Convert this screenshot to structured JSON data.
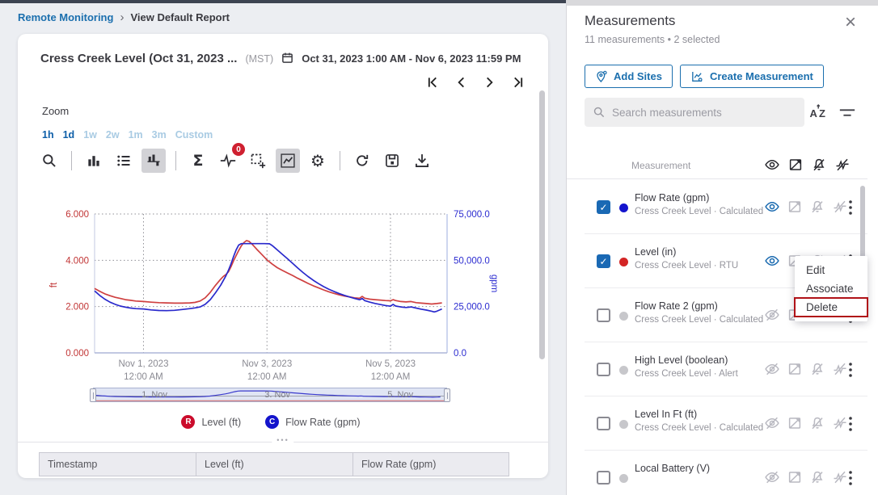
{
  "breadcrumb": {
    "root": "Remote Monitoring",
    "separator": "›",
    "current": "View Default Report"
  },
  "report": {
    "title": "Cress Creek Level (Oct 31, 2023 ...",
    "timezone": "(MST)",
    "date_range": "Oct 31, 2023 1:00 AM - Nov 6, 2023 11:59 PM",
    "zoom_label": "Zoom",
    "zoom_presets": [
      {
        "label": "1h",
        "active": true
      },
      {
        "label": "1d",
        "active": true
      },
      {
        "label": "1w",
        "active": false
      },
      {
        "label": "2w",
        "active": false
      },
      {
        "label": "1m",
        "active": false
      },
      {
        "label": "3m",
        "active": false
      },
      {
        "label": "Custom",
        "active": false
      }
    ],
    "toolbar": {
      "badge_count": "0",
      "sigma_glyph": "Σ",
      "gear_glyph": "⚙"
    }
  },
  "chart_data": {
    "type": "line",
    "title": "",
    "x_axis": {
      "unit": "hours since Oct 31, 2023 12:00 AM",
      "range": [
        5,
        142
      ],
      "ticks": [
        {
          "x": 24,
          "label_line1": "Nov 1, 2023",
          "label_line2": "12:00 AM"
        },
        {
          "x": 72,
          "label_line1": "Nov 3, 2023",
          "label_line2": "12:00 AM"
        },
        {
          "x": 120,
          "label_line1": "Nov 5, 2023",
          "label_line2": "12:00 AM"
        }
      ]
    },
    "y_left": {
      "label": "ft",
      "range": [
        0,
        6
      ],
      "tick_values": [
        0,
        2,
        4,
        6
      ],
      "tick_labels": [
        "0.000",
        "2.000",
        "4.000",
        "6.000"
      ],
      "color": "#c13535"
    },
    "y_right": {
      "label": "gpm",
      "range": [
        0,
        75000
      ],
      "tick_values": [
        0,
        25000,
        50000,
        75000
      ],
      "tick_labels": [
        "0.0",
        "25,000.0",
        "50,000.0",
        "75,000.0"
      ],
      "color": "#2b2bd0"
    },
    "grid": "dotted",
    "legend_position": "bottom",
    "series": [
      {
        "name": "Level (ft)",
        "axis": "left",
        "color": "#cf4040",
        "points": [
          [
            5,
            2.78
          ],
          [
            7,
            2.66
          ],
          [
            9,
            2.55
          ],
          [
            11,
            2.47
          ],
          [
            13,
            2.4
          ],
          [
            15,
            2.35
          ],
          [
            17,
            2.3
          ],
          [
            19,
            2.27
          ],
          [
            21,
            2.24
          ],
          [
            24,
            2.22
          ],
          [
            27,
            2.19
          ],
          [
            30,
            2.17
          ],
          [
            33,
            2.16
          ],
          [
            36,
            2.15
          ],
          [
            39,
            2.15
          ],
          [
            42,
            2.16
          ],
          [
            44,
            2.18
          ],
          [
            46,
            2.24
          ],
          [
            48,
            2.38
          ],
          [
            50,
            2.62
          ],
          [
            52,
            2.92
          ],
          [
            54,
            3.18
          ],
          [
            55,
            3.3
          ],
          [
            56,
            3.38
          ],
          [
            57,
            3.5
          ],
          [
            58,
            3.72
          ],
          [
            59,
            3.98
          ],
          [
            60,
            4.2
          ],
          [
            61,
            4.42
          ],
          [
            62,
            4.62
          ],
          [
            63,
            4.76
          ],
          [
            64,
            4.85
          ],
          [
            65,
            4.82
          ],
          [
            66,
            4.72
          ],
          [
            67,
            4.6
          ],
          [
            68,
            4.48
          ],
          [
            70,
            4.25
          ],
          [
            72,
            4.02
          ],
          [
            74,
            3.84
          ],
          [
            76,
            3.68
          ],
          [
            78,
            3.56
          ],
          [
            80,
            3.45
          ],
          [
            82,
            3.34
          ],
          [
            84,
            3.22
          ],
          [
            86,
            3.11
          ],
          [
            88,
            3.0
          ],
          [
            90,
            2.9
          ],
          [
            92,
            2.81
          ],
          [
            94,
            2.72
          ],
          [
            96,
            2.64
          ],
          [
            98,
            2.57
          ],
          [
            100,
            2.51
          ],
          [
            102,
            2.46
          ],
          [
            104,
            2.42
          ],
          [
            106,
            2.38
          ],
          [
            108,
            2.36
          ],
          [
            109,
            2.44
          ],
          [
            110,
            2.36
          ],
          [
            112,
            2.32
          ],
          [
            114,
            2.3
          ],
          [
            116,
            2.28
          ],
          [
            118,
            2.26
          ],
          [
            120,
            2.25
          ],
          [
            121,
            2.3
          ],
          [
            122,
            2.26
          ],
          [
            124,
            2.22
          ],
          [
            126,
            2.2
          ],
          [
            128,
            2.22
          ],
          [
            130,
            2.17
          ],
          [
            132,
            2.15
          ],
          [
            134,
            2.13
          ],
          [
            136,
            2.11
          ],
          [
            138,
            2.13
          ],
          [
            140,
            2.16
          ]
        ]
      },
      {
        "name": "Flow Rate (gpm)",
        "axis": "right",
        "color": "#2929cc",
        "points": [
          [
            5,
            33500
          ],
          [
            7,
            31000
          ],
          [
            9,
            29000
          ],
          [
            11,
            27400
          ],
          [
            13,
            26200
          ],
          [
            15,
            25300
          ],
          [
            17,
            24700
          ],
          [
            19,
            24200
          ],
          [
            21,
            23900
          ],
          [
            24,
            23700
          ],
          [
            27,
            23200
          ],
          [
            30,
            22900
          ],
          [
            33,
            22800
          ],
          [
            36,
            23000
          ],
          [
            39,
            23400
          ],
          [
            42,
            23900
          ],
          [
            44,
            24300
          ],
          [
            46,
            24800
          ],
          [
            48,
            26200
          ],
          [
            50,
            28800
          ],
          [
            52,
            32500
          ],
          [
            54,
            36500
          ],
          [
            56,
            41500
          ],
          [
            57,
            44500
          ],
          [
            58,
            48000
          ],
          [
            59,
            52000
          ],
          [
            60,
            55500
          ],
          [
            61,
            58200
          ],
          [
            62,
            59000
          ],
          [
            65,
            59000
          ],
          [
            68,
            59000
          ],
          [
            71,
            59000
          ],
          [
            73,
            58900
          ],
          [
            74,
            58000
          ],
          [
            75,
            56800
          ],
          [
            76,
            55600
          ],
          [
            78,
            53200
          ],
          [
            80,
            50800
          ],
          [
            82,
            48300
          ],
          [
            84,
            45800
          ],
          [
            86,
            43400
          ],
          [
            88,
            41200
          ],
          [
            90,
            39200
          ],
          [
            92,
            37400
          ],
          [
            94,
            35800
          ],
          [
            96,
            34400
          ],
          [
            98,
            33200
          ],
          [
            100,
            32100
          ],
          [
            102,
            31100
          ],
          [
            104,
            30200
          ],
          [
            106,
            29400
          ],
          [
            108,
            28700
          ],
          [
            109,
            29400
          ],
          [
            110,
            28200
          ],
          [
            112,
            27400
          ],
          [
            114,
            26700
          ],
          [
            116,
            26100
          ],
          [
            118,
            25600
          ],
          [
            120,
            25200
          ],
          [
            121,
            26200
          ],
          [
            122,
            25300
          ],
          [
            124,
            24800
          ],
          [
            126,
            24500
          ],
          [
            128,
            24800
          ],
          [
            130,
            24200
          ],
          [
            132,
            23600
          ],
          [
            134,
            23100
          ],
          [
            136,
            22500
          ],
          [
            137,
            22100
          ],
          [
            138,
            22500
          ],
          [
            139,
            23100
          ],
          [
            140,
            23700
          ]
        ]
      }
    ],
    "navigator": {
      "labels": [
        {
          "x": 24,
          "text": "1. Nov"
        },
        {
          "x": 72,
          "text": "3. Nov"
        },
        {
          "x": 120,
          "text": "5. Nov"
        }
      ]
    }
  },
  "legend": [
    {
      "symbol": "R",
      "label": "Level (ft)",
      "color": "#cb0c2c"
    },
    {
      "symbol": "C",
      "label": "Flow Rate (gpm)",
      "color": "#1414cc"
    }
  ],
  "table": {
    "columns": [
      "Timestamp",
      "Level (ft)",
      "Flow Rate (gpm)"
    ]
  },
  "panel": {
    "title": "Measurements",
    "subtitle": "11 measurements • 2 selected",
    "close_glyph": "×",
    "buttons": {
      "add_sites": "Add Sites",
      "create_measurement": "Create Measurement"
    },
    "search_placeholder": "Search measurements",
    "list_header": "Measurement",
    "check_glyph": "✓",
    "rows": [
      {
        "name": "Flow Rate (gpm)",
        "source": "Cress Creek Level · Calculated",
        "checked": true,
        "dot": "#1414cd",
        "visible": true
      },
      {
        "name": "Level (in)",
        "source": "Cress Creek Level · RTU",
        "checked": true,
        "dot": "#d32525",
        "visible": true
      },
      {
        "name": "Flow Rate 2 (gpm)",
        "source": "Cress Creek Level · Calculated",
        "checked": false,
        "dot": "#c7c7cb",
        "visible": false
      },
      {
        "name": "High Level (boolean)",
        "source": "Cress Creek Level · Alert",
        "checked": false,
        "dot": "#c7c7cb",
        "visible": false
      },
      {
        "name": "Level In Ft (ft)",
        "source": "Cress Creek Level · Calculated",
        "checked": false,
        "dot": "#c7c7cb",
        "visible": false
      },
      {
        "name": "Local Battery (V)",
        "source": "",
        "checked": false,
        "dot": "#c7c7cb",
        "visible": false
      }
    ],
    "context_menu": {
      "items": [
        "Edit",
        "Associate",
        "Delete"
      ],
      "highlighted": "Delete"
    }
  },
  "misc": {
    "dots_handle": "•••"
  }
}
